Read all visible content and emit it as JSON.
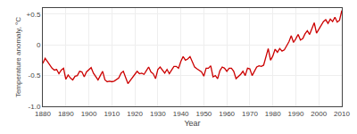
{
  "chart_data": {
    "type": "line",
    "xlabel": "Year",
    "ylabel": "Temperature anomaly, °C",
    "x": [
      1880,
      1881,
      1882,
      1883,
      1884,
      1885,
      1886,
      1887,
      1888,
      1889,
      1890,
      1891,
      1892,
      1893,
      1894,
      1895,
      1896,
      1897,
      1898,
      1899,
      1900,
      1901,
      1902,
      1903,
      1904,
      1905,
      1906,
      1907,
      1908,
      1909,
      1910,
      1911,
      1912,
      1913,
      1914,
      1915,
      1916,
      1917,
      1918,
      1919,
      1920,
      1921,
      1922,
      1923,
      1924,
      1925,
      1926,
      1927,
      1928,
      1929,
      1930,
      1931,
      1932,
      1933,
      1934,
      1935,
      1936,
      1937,
      1938,
      1939,
      1940,
      1941,
      1942,
      1943,
      1944,
      1945,
      1946,
      1947,
      1948,
      1949,
      1950,
      1951,
      1952,
      1953,
      1954,
      1955,
      1956,
      1957,
      1958,
      1959,
      1960,
      1961,
      1962,
      1963,
      1964,
      1965,
      1966,
      1967,
      1968,
      1969,
      1970,
      1971,
      1972,
      1973,
      1974,
      1975,
      1976,
      1977,
      1978,
      1979,
      1980,
      1981,
      1982,
      1983,
      1984,
      1985,
      1986,
      1987,
      1988,
      1989,
      1990,
      1991,
      1992,
      1993,
      1994,
      1995,
      1996,
      1997,
      1998,
      1999,
      2000,
      2001,
      2002,
      2003,
      2004,
      2005,
      2006,
      2007,
      2008,
      2009,
      2010
    ],
    "values": [
      -0.3,
      -0.22,
      -0.27,
      -0.32,
      -0.38,
      -0.41,
      -0.4,
      -0.47,
      -0.41,
      -0.38,
      -0.56,
      -0.49,
      -0.54,
      -0.57,
      -0.51,
      -0.5,
      -0.43,
      -0.44,
      -0.52,
      -0.44,
      -0.41,
      -0.37,
      -0.46,
      -0.52,
      -0.57,
      -0.5,
      -0.43,
      -0.57,
      -0.6,
      -0.59,
      -0.6,
      -0.59,
      -0.57,
      -0.54,
      -0.46,
      -0.43,
      -0.53,
      -0.63,
      -0.58,
      -0.52,
      -0.48,
      -0.43,
      -0.47,
      -0.46,
      -0.48,
      -0.42,
      -0.36,
      -0.44,
      -0.47,
      -0.55,
      -0.4,
      -0.36,
      -0.42,
      -0.46,
      -0.4,
      -0.47,
      -0.41,
      -0.35,
      -0.35,
      -0.38,
      -0.27,
      -0.19,
      -0.25,
      -0.23,
      -0.19,
      -0.28,
      -0.36,
      -0.39,
      -0.41,
      -0.44,
      -0.51,
      -0.38,
      -0.38,
      -0.34,
      -0.52,
      -0.5,
      -0.55,
      -0.42,
      -0.36,
      -0.38,
      -0.43,
      -0.38,
      -0.38,
      -0.43,
      -0.55,
      -0.52,
      -0.48,
      -0.43,
      -0.5,
      -0.38,
      -0.39,
      -0.5,
      -0.42,
      -0.36,
      -0.34,
      -0.35,
      -0.33,
      -0.19,
      -0.06,
      -0.25,
      -0.18,
      -0.07,
      -0.12,
      -0.06,
      -0.1,
      -0.08,
      -0.02,
      0.05,
      0.15,
      0.04,
      0.1,
      0.17,
      0.08,
      0.1,
      0.18,
      0.23,
      0.17,
      0.27,
      0.36,
      0.19,
      0.25,
      0.3,
      0.38,
      0.41,
      0.35,
      0.42,
      0.38,
      0.45,
      0.37,
      0.4,
      0.56
    ],
    "color": "#cc0000",
    "xlim": [
      1880,
      2010
    ],
    "ylim": [
      -1.0,
      0.6
    ],
    "xticks": [
      1880,
      1890,
      1900,
      1910,
      1920,
      1930,
      1940,
      1950,
      1960,
      1970,
      1980,
      1990,
      2000,
      2010
    ],
    "yticks": [
      {
        "value": -1.0,
        "label": "-1.0"
      },
      -0.5,
      0,
      {
        "value": 0.5,
        "label": "+0.5"
      }
    ],
    "grid": true
  }
}
